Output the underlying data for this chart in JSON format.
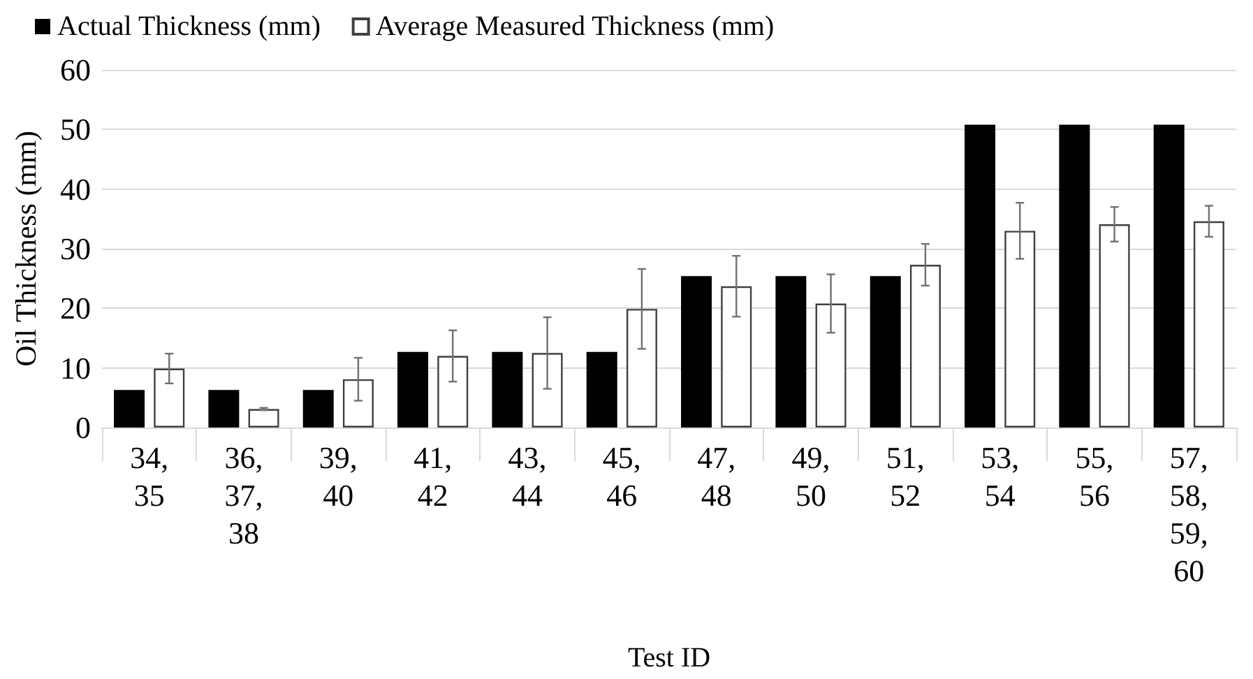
{
  "chart_data": {
    "type": "bar",
    "xlabel": "Test ID",
    "ylabel": "Oil Thickness (mm)",
    "categories": [
      "34, 35",
      "36, 37, 38",
      "39, 40",
      "41, 42",
      "43, 44",
      "45, 46",
      "47, 48",
      "49, 50",
      "51, 52",
      "53, 54",
      "55, 56",
      "57, 58, 59, 60"
    ],
    "series": [
      {
        "name": "Actual Thickness (mm)",
        "color": "#000000",
        "values": [
          6.3,
          6.3,
          6.3,
          12.7,
          12.7,
          12.7,
          25.4,
          25.4,
          25.4,
          50.8,
          50.8,
          50.8
        ]
      },
      {
        "name": "Average Measured Thickness (mm)",
        "color": "#ffffff",
        "values": [
          9.9,
          3.1,
          8.1,
          12.0,
          12.5,
          19.9,
          23.7,
          20.8,
          27.3,
          33.0,
          34.1,
          34.6
        ],
        "errors": [
          2.5,
          0.2,
          3.6,
          4.3,
          6.0,
          6.7,
          5.1,
          4.9,
          3.5,
          4.7,
          2.9,
          2.6
        ]
      }
    ],
    "ylim": [
      0,
      60
    ],
    "yticks": [
      0,
      10,
      20,
      30,
      40,
      50,
      60
    ],
    "grid": "y",
    "legend": "top left"
  }
}
